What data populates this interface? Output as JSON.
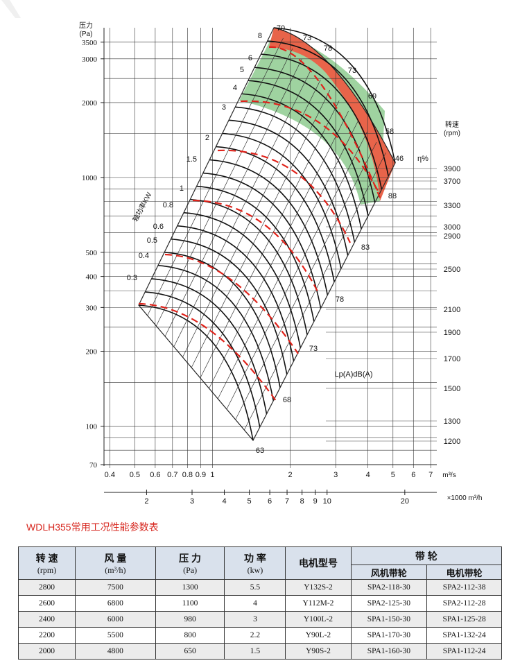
{
  "chart_data": {
    "type": "fan-performance-curves",
    "y_axis": {
      "label": "压力",
      "unit": "(Pa)",
      "scale": "log",
      "ticks": [
        "70",
        "100",
        "200",
        "300",
        "400",
        "500",
        "1000",
        "2000",
        "3000",
        "3500"
      ],
      "range": [
        70,
        4000
      ]
    },
    "x_axis": {
      "unit": "m³/s",
      "scale": "log",
      "ticks": [
        "0.4",
        "0.5",
        "0.6",
        "0.7",
        "0.8",
        "0.9",
        "1",
        "2",
        "3",
        "4",
        "5",
        "6",
        "7"
      ],
      "range": [
        0.38,
        7.3
      ]
    },
    "x_axis_secondary": {
      "unit": "×1000 m³/h",
      "ticks": [
        "2",
        "3",
        "4",
        "5",
        "6",
        "7",
        "8",
        "9",
        "10",
        "20"
      ]
    },
    "speed_axis": {
      "label": "转速",
      "unit": "(rpm)",
      "ticks": [
        "3900",
        "3700",
        "3300",
        "3000",
        "2900",
        "2500",
        "2100",
        "1900",
        "1700",
        "1500",
        "1300",
        "1200"
      ]
    },
    "power_label": "轴功率KW",
    "power_values": [
      "0.3",
      "0.4",
      "0.5",
      "0.6",
      "0.8",
      "1",
      "1.5",
      "2",
      "3",
      "4",
      "5",
      "6",
      "8"
    ],
    "efficiency_label": "η%",
    "efficiency_values": [
      "70",
      "73",
      "78",
      "73",
      "69",
      "58",
      "46"
    ],
    "noise_label": "Lp(A)dB(A)",
    "noise_values": [
      "63",
      "68",
      "73",
      "78",
      "83",
      "88"
    ]
  },
  "table": {
    "title": "WDLH355常用工况性能参数表",
    "headers": {
      "speed": "转 速",
      "speed_unit": "(rpm)",
      "flow": "风 量",
      "flow_unit": "(m³/h)",
      "pressure": "压 力",
      "pressure_unit": "(Pa)",
      "power": "功 率",
      "power_unit": "(kw)",
      "motor": "电机型号",
      "pulley": "带 轮",
      "fan_pulley": "风机带轮",
      "motor_pulley": "电机带轮"
    },
    "rows": [
      [
        "2800",
        "7500",
        "1300",
        "5.5",
        "Y132S-2",
        "SPA2-118-30",
        "SPA2-112-38"
      ],
      [
        "2600",
        "6800",
        "1100",
        "4",
        "Y112M-2",
        "SPA2-125-30",
        "SPA2-112-28"
      ],
      [
        "2400",
        "6000",
        "980",
        "3",
        "Y100L-2",
        "SPA1-150-30",
        "SPA1-125-28"
      ],
      [
        "2200",
        "5500",
        "800",
        "2.2",
        "Y90L-2",
        "SPA1-170-30",
        "SPA1-132-24"
      ],
      [
        "2000",
        "4800",
        "650",
        "1.5",
        "Y90S-2",
        "SPA1-160-30",
        "SPA1-112-24"
      ]
    ]
  },
  "colors": {
    "red_zone": "#e8644a",
    "green_zone": "#9fd3a0",
    "dashed": "#e0221a",
    "title": "#d7261e",
    "header_bg": "#d9e1ec"
  }
}
